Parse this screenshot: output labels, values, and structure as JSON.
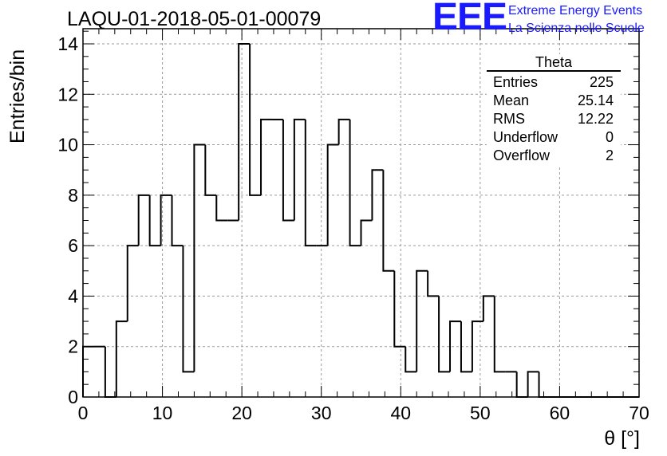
{
  "title": "LAQU-01-2018-05-01-00079",
  "brand": {
    "logo": "EEE",
    "line1": "Extreme Energy Events",
    "line2": "La Scienza nelle Scuole",
    "color": "#1a1aff"
  },
  "stats": {
    "name": "Theta",
    "rows": [
      {
        "label": "Entries",
        "value": "225"
      },
      {
        "label": "Mean",
        "value": "25.14"
      },
      {
        "label": "RMS",
        "value": "12.22"
      },
      {
        "label": "Underflow",
        "value": "0"
      },
      {
        "label": "Overflow",
        "value": "2"
      }
    ]
  },
  "chart_data": {
    "type": "bar",
    "title": "LAQU-01-2018-05-01-00079",
    "xlabel": "θ [°]",
    "ylabel": "Entries/bin",
    "xlim": [
      0,
      70
    ],
    "ylim": [
      0,
      14.6
    ],
    "grid": true,
    "x_ticks": [
      0,
      10,
      20,
      30,
      40,
      50,
      60,
      70
    ],
    "y_ticks": [
      0,
      2,
      4,
      6,
      8,
      10,
      12,
      14
    ],
    "bin_width": 1.4,
    "values": [
      2,
      2,
      0,
      3,
      6,
      8,
      6,
      8,
      6,
      1,
      10,
      8,
      7,
      7,
      14,
      8,
      11,
      11,
      7,
      11,
      6,
      6,
      10,
      11,
      6,
      7,
      9,
      5,
      2,
      1,
      5,
      4,
      1,
      3,
      1,
      3,
      4,
      1,
      1,
      0,
      1,
      0,
      0,
      0,
      0,
      0,
      0,
      0,
      0,
      0
    ],
    "line_color": "#000000"
  }
}
